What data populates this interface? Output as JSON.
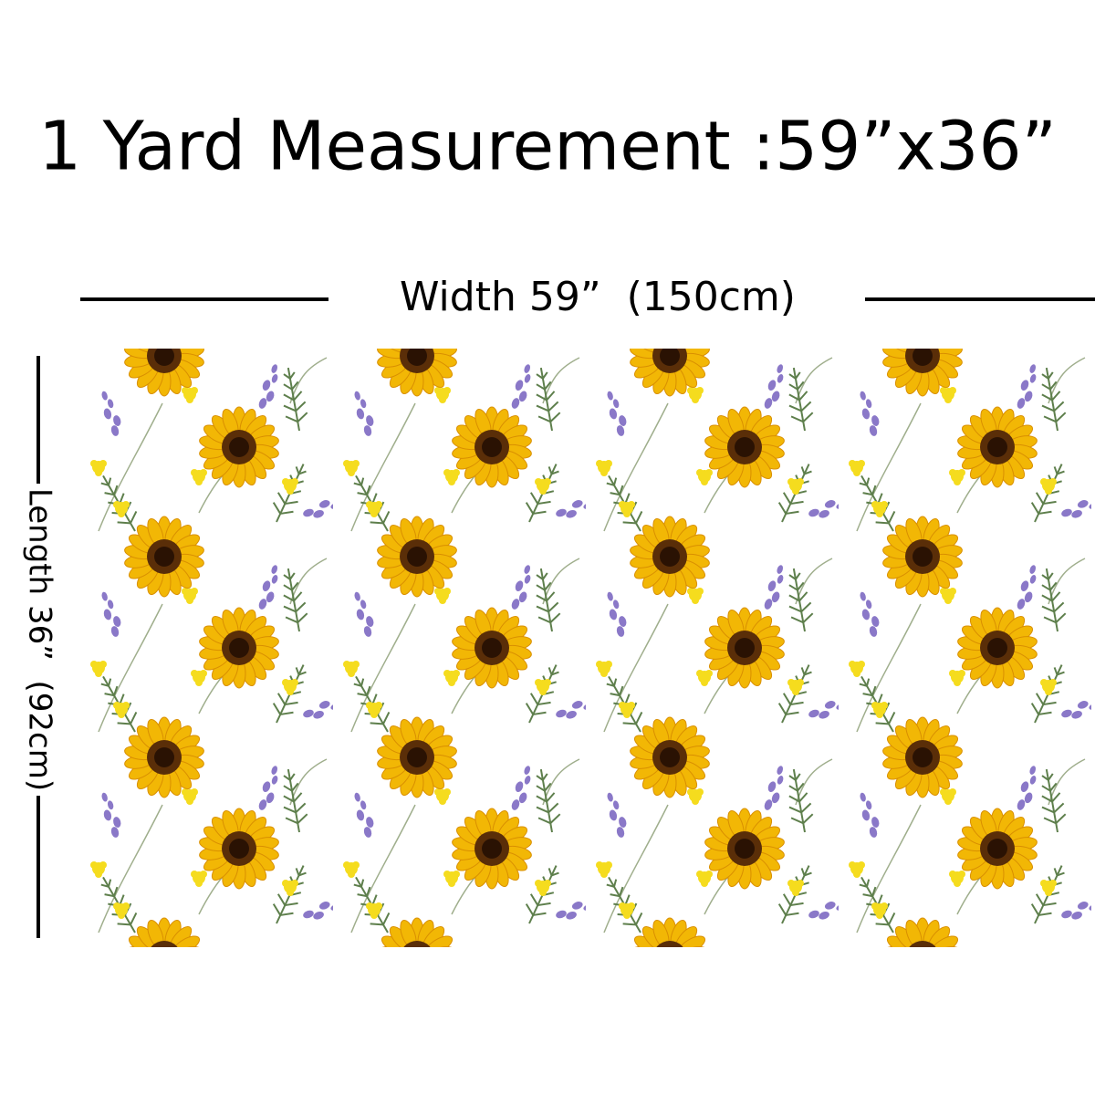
{
  "header": {
    "title": "1 Yard Measurement :59”x36”"
  },
  "dimensions": {
    "width_label": "Width 59”  (150cm)",
    "length_label": "Length 36”  (92cm)"
  }
}
